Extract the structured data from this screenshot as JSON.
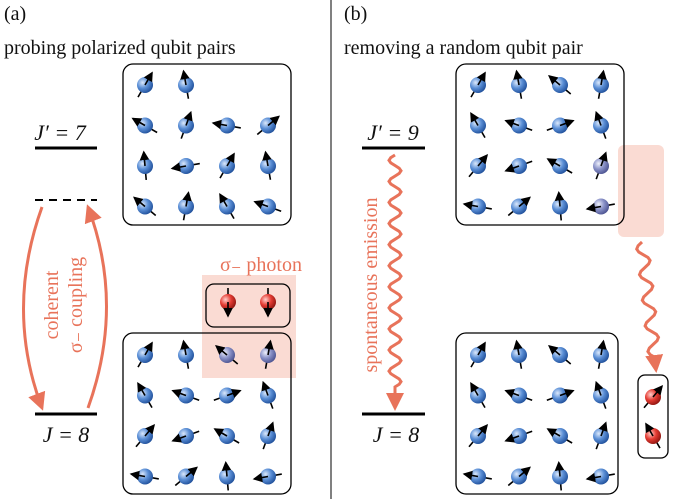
{
  "panel_a": {
    "label": "(a)",
    "title": "probing polarized qubit pairs",
    "upper_level": "J′ = 7",
    "lower_level": "J = 8",
    "coupling_line1": "coherent",
    "coupling_line2": "σ₋ coupling",
    "photon": "σ₋ photon"
  },
  "panel_b": {
    "label": "(b)",
    "title": "removing a random qubit pair",
    "upper_level": "J′ = 9",
    "lower_level": "J = 8",
    "emission": "spontaneous emission"
  }
}
